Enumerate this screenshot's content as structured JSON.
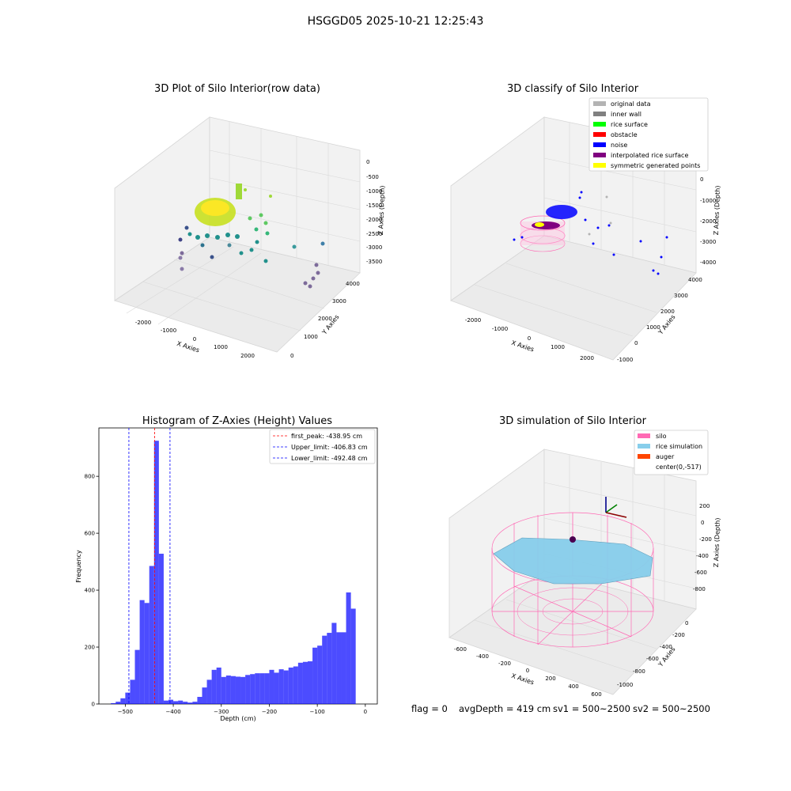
{
  "figure": {
    "suptitle": "HSGGD05 2025-10-21 12:25:43",
    "status_text": {
      "flag": "flag = 0",
      "avg_depth": "avgDepth = 419 cm",
      "sv1": "sv1 = 500~2500",
      "sv2": "sv2 = 500~2500"
    }
  },
  "raw_plot": {
    "title": "3D Plot of Silo Interior(row data)",
    "xlabel": "X Axies",
    "ylabel": "Y Axies",
    "zlabel": "Z Axies (Depth)",
    "xticks": [
      "-2000",
      "-1000",
      "0",
      "1000",
      "2000"
    ],
    "yticks": [
      "0",
      "1000",
      "2000",
      "3000",
      "4000"
    ],
    "zticks": [
      "0",
      "-500",
      "-1000",
      "-1500",
      "-2000",
      "-2500",
      "-3000",
      "-3500"
    ]
  },
  "classify_plot": {
    "title": "3D classify of Silo Interior",
    "xlabel": "X Axies",
    "ylabel": "Y Axies",
    "zlabel": "Z Axies (Depth)",
    "xticks": [
      "-2000",
      "-1000",
      "0",
      "1000",
      "2000"
    ],
    "yticks": [
      "-1000",
      "0",
      "1000",
      "2000",
      "3000",
      "4000"
    ],
    "zticks": [
      "0",
      "-1000",
      "-2000",
      "-3000",
      "-4000"
    ],
    "legend": [
      {
        "label": "original data",
        "color": "#b3b3b3"
      },
      {
        "label": "inner wall",
        "color": "#808080"
      },
      {
        "label": "rice surface",
        "color": "#00ff00"
      },
      {
        "label": "obstacle",
        "color": "#ff0000"
      },
      {
        "label": "noise",
        "color": "#0000ff"
      },
      {
        "label": "interpolated rice surface",
        "color": "#800080"
      },
      {
        "label": "symmetric generated points",
        "color": "#ffff00"
      }
    ]
  },
  "sim_plot": {
    "title": "3D simulation of Silo Interior",
    "xlabel": "X Axies",
    "ylabel": "Y Axies",
    "zlabel": "Z Axies (Depth)",
    "xticks": [
      "-600",
      "-400",
      "-200",
      "0",
      "200",
      "400",
      "600"
    ],
    "yticks": [
      "0",
      "-200",
      "-400",
      "-600",
      "-800",
      "-1000"
    ],
    "zticks": [
      "200",
      "0",
      "-200",
      "-400",
      "-600",
      "-800"
    ],
    "legend": [
      {
        "label": "silo",
        "color": "#ff69b4"
      },
      {
        "label": "rice simulation",
        "color": "#87ceeb"
      },
      {
        "label": "auger",
        "color": "#ff4500"
      },
      {
        "label": "center(0,-517)",
        "color": ""
      }
    ]
  },
  "chart_data": [
    {
      "type": "bar",
      "title": "Histogram of Z-Axies (Height) Values",
      "xlabel": "Depth (cm)",
      "ylabel": "Frequency",
      "xlim": [
        -555,
        25
      ],
      "ylim": [
        0,
        970
      ],
      "xticks": [
        -500,
        -400,
        -300,
        -200,
        -100,
        0
      ],
      "yticks": [
        0,
        200,
        400,
        600,
        800
      ],
      "bin_width": 10,
      "bin_starts": [
        -530,
        -520,
        -510,
        -500,
        -490,
        -480,
        -470,
        -460,
        -450,
        -440,
        -430,
        -420,
        -410,
        -400,
        -390,
        -380,
        -370,
        -360,
        -350,
        -340,
        -330,
        -320,
        -310,
        -300,
        -290,
        -280,
        -270,
        -260,
        -250,
        -240,
        -230,
        -220,
        -210,
        -200,
        -190,
        -180,
        -170,
        -160,
        -150,
        -140,
        -130,
        -120,
        -110,
        -100,
        -90,
        -80,
        -70,
        -60,
        -50,
        -40,
        -30,
        -20,
        -10
      ],
      "values": [
        3,
        8,
        20,
        40,
        85,
        190,
        365,
        355,
        485,
        925,
        528,
        12,
        15,
        10,
        12,
        8,
        5,
        8,
        25,
        58,
        85,
        120,
        128,
        95,
        100,
        98,
        96,
        95,
        102,
        105,
        108,
        108,
        108,
        120,
        110,
        122,
        118,
        128,
        132,
        145,
        148,
        150,
        198,
        205,
        240,
        250,
        285,
        252,
        252,
        392,
        335,
        0,
        0
      ],
      "bar_color": "#0000ff",
      "bar_alpha": 0.7,
      "vlines": [
        {
          "label": "first_peak: -438.95 cm",
          "x": -438.95,
          "color": "#ff0000"
        },
        {
          "label": "Upper_limit: -406.83 cm",
          "x": -406.83,
          "color": "#0000ff"
        },
        {
          "label": "Lower_limit: -492.48 cm",
          "x": -492.48,
          "color": "#0000ff"
        }
      ],
      "legend_loc": "upper right"
    }
  ]
}
